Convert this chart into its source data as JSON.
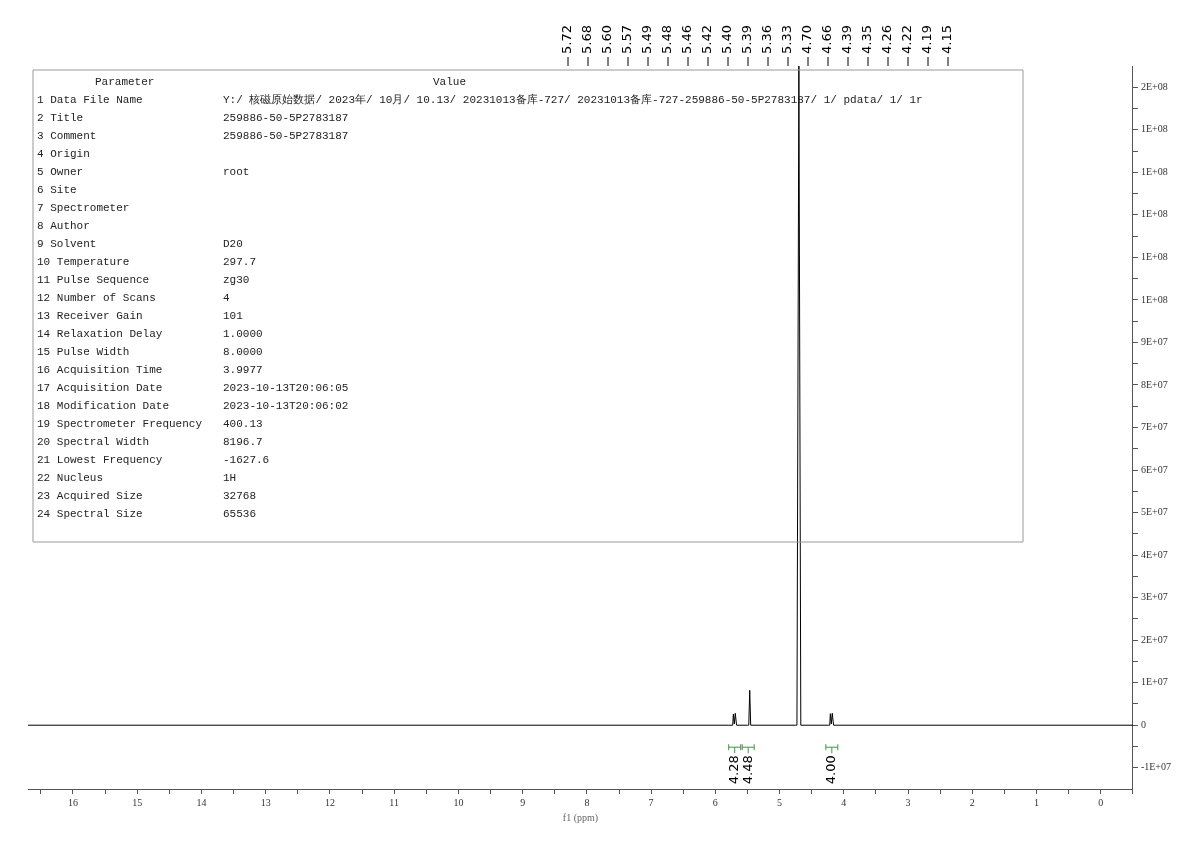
{
  "chart_data": {
    "type": "line",
    "xlabel": "f1 (ppm)",
    "xlim": [
      16.7,
      -0.5
    ],
    "xticks": [
      16,
      15,
      14,
      13,
      12,
      11,
      10,
      9,
      8,
      7,
      6,
      5,
      4,
      3,
      2,
      1,
      0,
      {
        "value": 16.5,
        "label": null
      },
      {
        "value": 15.5,
        "label": null
      },
      {
        "value": 14.5,
        "label": null
      },
      {
        "value": 13.5,
        "label": null
      },
      {
        "value": 12.5,
        "label": null
      },
      {
        "value": 11.5,
        "label": null
      },
      {
        "value": 10.5,
        "label": null
      },
      {
        "value": 9.5,
        "label": null
      },
      {
        "value": 8.5,
        "label": null
      },
      {
        "value": 7.5,
        "label": null
      },
      {
        "value": 6.5,
        "label": null
      },
      {
        "value": 5.5,
        "label": null
      },
      {
        "value": 4.5,
        "label": null
      },
      {
        "value": 3.5,
        "label": null
      },
      {
        "value": 2.5,
        "label": null
      },
      {
        "value": 1.5,
        "label": null
      },
      {
        "value": 0.5,
        "label": null
      },
      {
        "value": -0.5,
        "label": null
      }
    ],
    "ylim": [
      -15000000,
      155000000
    ],
    "yticks": [
      {
        "value": -10000000,
        "label": "-1E+07"
      },
      0,
      {
        "value": 10000000,
        "label": "1E+07"
      },
      {
        "value": 20000000,
        "label": "2E+07"
      },
      {
        "value": 30000000,
        "label": "3E+07"
      },
      {
        "value": 40000000,
        "label": "4E+07"
      },
      {
        "value": 50000000,
        "label": "5E+07"
      },
      {
        "value": 60000000,
        "label": "6E+07"
      },
      {
        "value": 70000000,
        "label": "7E+07"
      },
      {
        "value": 80000000,
        "label": "8E+07"
      },
      {
        "value": 90000000,
        "label": "9E+07"
      },
      {
        "value": 100000000,
        "label": "1E+08"
      },
      {
        "value": 110000000,
        "label": "1E+08"
      },
      {
        "value": 120000000,
        "label": "1E+08"
      },
      {
        "value": 130000000,
        "label": "1E+08"
      },
      {
        "value": 140000000,
        "label": "1E+08"
      },
      {
        "value": 150000000,
        "label": "2E+08"
      },
      {
        "value": -5000000,
        "label": null
      },
      {
        "value": 5000000,
        "label": null
      },
      {
        "value": 15000000,
        "label": null
      },
      {
        "value": 25000000,
        "label": null
      },
      {
        "value": 35000000,
        "label": null
      },
      {
        "value": 45000000,
        "label": null
      },
      {
        "value": 55000000,
        "label": null
      },
      {
        "value": 65000000,
        "label": null
      },
      {
        "value": 75000000,
        "label": null
      },
      {
        "value": 85000000,
        "label": null
      },
      {
        "value": 95000000,
        "label": null
      },
      {
        "value": 105000000,
        "label": null
      },
      {
        "value": 115000000,
        "label": null
      },
      {
        "value": 125000000,
        "label": null
      },
      {
        "value": 135000000,
        "label": null
      },
      {
        "value": 145000000,
        "label": null
      }
    ],
    "grid": false,
    "legend": false,
    "marker": "none",
    "line_style": "solid",
    "series": [
      {
        "color": "#000000",
        "x": [
          16.7,
          5.8,
          5.73,
          5.72,
          5.705,
          5.69,
          5.67,
          5.5,
          5.48,
          5.465,
          5.45,
          4.75,
          4.73,
          4.7,
          4.67,
          4.24,
          4.22,
          4.21,
          4.195,
          4.18,
          4.16,
          -0.5
        ],
        "values": [
          0,
          0,
          0,
          2600000,
          300000,
          2800000,
          0,
          0,
          0,
          8200000,
          0,
          0,
          0,
          155000000,
          0,
          0,
          0,
          2700000,
          300000,
          2800000,
          0,
          0
        ]
      }
    ],
    "annotations": [
      "Parameter",
      "Value",
      "1 Data File Name\tY:/ 核磁原始数据/ 2023年/ 10月/ 10.13/ 20231013备库-727/ 20231013备库-727-259886-50-5P2783187/ 1/ pdata/ 1/ 1r",
      "2 Title\t259886-50-5P2783187",
      "3 Comment\t259886-50-5P2783187",
      "4 Origin",
      "5 Owner\troot",
      "6 Site",
      "7 Spectrometer",
      "8 Author",
      "9 Solvent\tD20",
      "10 Temperature\t297.7",
      "11 Pulse Sequence\tzg30",
      "12 Number of Scans\t4",
      "13 Receiver Gain\t101",
      "14 Relaxation Delay\t1.0000",
      "15 Pulse Width\t8.0000",
      "16 Acquisition Time\t3.9977",
      "17 Acquisition Date\t2023-10-13T20:06:05",
      "18 Modification Date\t2023-10-13T20:06:02",
      "19 Spectrometer Frequency\t400.13",
      "20 Spectral Width\t8196.7",
      "21 Lowest Frequency\t-1627.6",
      "22 Nucleus\t1H",
      "23 Acquired Size\t32768",
      "24 Spectral Size\t65536",
      "5.72",
      "5.68",
      "5.60",
      "5.57",
      "5.49",
      "5.48",
      "5.46",
      "5.42",
      "5.40",
      "5.39",
      "5.36",
      "5.33",
      "4.70",
      "4.66",
      "4.39",
      "4.35",
      "4.26",
      "4.22",
      "4.19",
      "4.15",
      {
        "text": "4.28"
      },
      {
        "text": "4.48"
      },
      {
        "text": "4.00"
      }
    ]
  }
}
